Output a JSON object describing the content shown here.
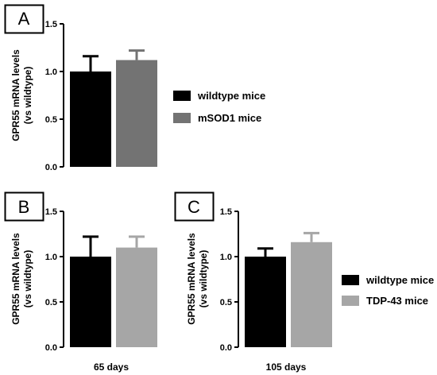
{
  "chart_data": [
    {
      "panel": "A",
      "type": "bar",
      "ylabel": "GPR55 mRNA levels (vs wildtype)",
      "ylabel_lines": [
        "GPR55 mRNA levels",
        "(vs wildtype)"
      ],
      "ylim": [
        0,
        1.5
      ],
      "yticks": [
        "0.0",
        "0.5",
        "1.0",
        "1.5"
      ],
      "xlabel": "",
      "error_bars": true,
      "legend_position": "right",
      "series": [
        {
          "name": "wildtype mice",
          "value": 1.0,
          "error": 0.16,
          "color": "#000000"
        },
        {
          "name": "mSOD1 mice",
          "value": 1.12,
          "error": 0.1,
          "color": "#737373"
        }
      ]
    },
    {
      "panel": "B",
      "type": "bar",
      "ylabel": "GPR55 mRNA levels (vs wildtype)",
      "ylabel_lines": [
        "GPR55 mRNA levels",
        "(vs wildtype)"
      ],
      "ylim": [
        0,
        1.5
      ],
      "yticks": [
        "0.0",
        "0.5",
        "1.0",
        "1.5"
      ],
      "xlabel": "65 days",
      "error_bars": true,
      "series": [
        {
          "name": "wildtype mice",
          "value": 1.0,
          "error": 0.22,
          "color": "#000000"
        },
        {
          "name": "TDP-43 mice",
          "value": 1.1,
          "error": 0.12,
          "color": "#a6a6a6"
        }
      ]
    },
    {
      "panel": "C",
      "type": "bar",
      "ylabel": "GPR55 mRNA levels (vs wildtype)",
      "ylabel_lines": [
        "GPR55 mRNA levels",
        "(vs wildtype)"
      ],
      "ylim": [
        0,
        1.5
      ],
      "yticks": [
        "0.0",
        "0.5",
        "1.0",
        "1.5"
      ],
      "xlabel": "105 days",
      "error_bars": true,
      "legend_position": "right",
      "series": [
        {
          "name": "wildtype mice",
          "value": 1.0,
          "error": 0.09,
          "color": "#000000"
        },
        {
          "name": "TDP-43 mice",
          "value": 1.16,
          "error": 0.1,
          "color": "#a6a6a6"
        }
      ]
    }
  ],
  "legends": [
    {
      "items": [
        {
          "label": "wildtype mice",
          "color": "#000000"
        },
        {
          "label": "mSOD1 mice",
          "color": "#737373"
        }
      ]
    },
    {
      "items": [
        {
          "label": "wildtype mice",
          "color": "#000000"
        },
        {
          "label": "TDP-43 mice",
          "color": "#a6a6a6"
        }
      ]
    }
  ]
}
